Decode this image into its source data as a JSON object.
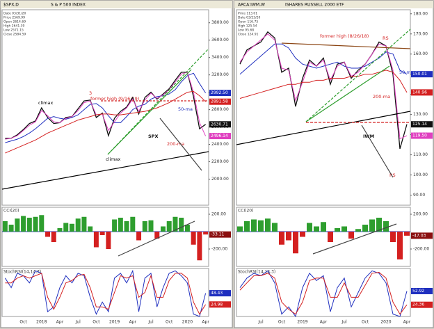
{
  "chart_data": [
    {
      "type": "line",
      "symbol": "$SPX,D",
      "title": "S & P 500 INDEX",
      "info": [
        "Date 03/31/20",
        "Price 2569.99",
        "Open 2614.69",
        "High 2641.39",
        "Low 2571.15",
        "Close 2584.59"
      ],
      "categories": [
        null,
        null,
        null,
        "Oct",
        null,
        null,
        "2018",
        null,
        null,
        "Apr",
        null,
        null,
        "Jul",
        null,
        null,
        "Oct",
        null,
        null,
        "2019",
        null,
        null,
        "Apr",
        null,
        null,
        "Jul",
        null,
        null,
        "Oct",
        null,
        null,
        "2020",
        null,
        null,
        "Apr"
      ],
      "ylim": [
        1700,
        3950
      ],
      "yticks": [
        {
          "value": 2000,
          "label": "2000.00"
        },
        {
          "value": 2200,
          "label": "2200.00"
        },
        {
          "value": 2400,
          "label": "2400.00"
        },
        {
          "value": 2600,
          "label": "2600.00"
        },
        {
          "value": 2800,
          "label": "2800.00"
        },
        {
          "value": 3000,
          "label": "3000.00"
        },
        {
          "value": 3200,
          "label": "3200.00"
        },
        {
          "value": 3400,
          "label": "3400.00"
        },
        {
          "value": 3600,
          "label": "3600.00"
        },
        {
          "value": 3800,
          "label": "3800.00"
        }
      ],
      "series": [
        {
          "name": "SPX",
          "color": "#111111",
          "values": [
            2470,
            2470,
            2510,
            2570,
            2640,
            2670,
            2820,
            2710,
            2640,
            2650,
            2710,
            2720,
            2810,
            2900,
            2910,
            2710,
            2760,
            2500,
            2700,
            2780,
            2830,
            2940,
            2750,
            2940,
            3000,
            2920,
            2980,
            3040,
            3140,
            3230,
            3230,
            2950,
            2580,
            2630.71
          ],
          "tag": {
            "value": 2630.71,
            "label": "2630.71"
          }
        },
        {
          "name": "50-ma",
          "color": "#1f2fbf",
          "values": [
            2420,
            2440,
            2460,
            2490,
            2530,
            2580,
            2640,
            2700,
            2720,
            2700,
            2690,
            2710,
            2740,
            2800,
            2860,
            2870,
            2820,
            2730,
            2650,
            2650,
            2720,
            2800,
            2840,
            2860,
            2920,
            2950,
            2960,
            2980,
            3030,
            3120,
            3190,
            3220,
            3100,
            2992.5
          ],
          "tag": {
            "value": 2992.5,
            "label": "2992.50"
          }
        },
        {
          "color": "#e040c0",
          "values": [
            2460,
            2470,
            2500,
            2560,
            2620,
            2660,
            2790,
            2730,
            2660,
            2650,
            2700,
            2720,
            2790,
            2880,
            2900,
            2740,
            2750,
            2560,
            2660,
            2760,
            2820,
            2920,
            2780,
            2910,
            2990,
            2930,
            2970,
            3030,
            3120,
            3210,
            3230,
            3000,
            2650,
            2496.14
          ],
          "tag": {
            "value": 2496.14,
            "label": "2496.14"
          }
        },
        {
          "name": "200-ma",
          "color": "#d42020",
          "values": [
            2300,
            2330,
            2360,
            2390,
            2420,
            2450,
            2490,
            2530,
            2560,
            2590,
            2620,
            2650,
            2680,
            2700,
            2720,
            2740,
            2750,
            2750,
            2740,
            2740,
            2750,
            2760,
            2770,
            2780,
            2800,
            2820,
            2850,
            2880,
            2920,
            2960,
            3000,
            3010,
            2960,
            2891.58
          ],
          "tag": {
            "value": 2891.58,
            "label": "2891.58"
          }
        }
      ],
      "annotations": [
        "climax",
        "3",
        "former high (9/16/19)",
        "climax"
      ]
    },
    {
      "type": "bar",
      "title": "CCI(20)",
      "pos_color": "#2e9e2e",
      "neg_color": "#d42020",
      "ylim": [
        -400,
        280
      ],
      "yticks": [
        {
          "value": 200,
          "label": "200.00"
        },
        {
          "value": -200,
          "label": "-200.00"
        }
      ],
      "values": [
        120,
        80,
        150,
        180,
        160,
        170,
        190,
        -60,
        -120,
        40,
        100,
        90,
        150,
        170,
        60,
        -180,
        -40,
        -200,
        140,
        160,
        120,
        170,
        -100,
        120,
        130,
        -80,
        60,
        120,
        170,
        160,
        80,
        -150,
        -330,
        -33.11
      ],
      "tag": {
        "value": -33.11,
        "label": "-33.11",
        "color": "#8b1010"
      }
    },
    {
      "type": "line",
      "title": "StochRSI(14,14,3)",
      "ylim": [
        0,
        100
      ],
      "series": [
        {
          "color": "#1f2fbf",
          "values": [
            80,
            60,
            90,
            85,
            70,
            95,
            90,
            10,
            20,
            60,
            85,
            70,
            90,
            85,
            40,
            5,
            30,
            10,
            80,
            90,
            70,
            95,
            10,
            80,
            90,
            20,
            60,
            90,
            95,
            85,
            70,
            5,
            0,
            48.43
          ],
          "tag": {
            "value": 48.43,
            "label": "48.43"
          }
        },
        {
          "color": "#d42020",
          "values": [
            70,
            70,
            80,
            85,
            80,
            85,
            90,
            40,
            15,
            40,
            70,
            75,
            85,
            88,
            60,
            20,
            20,
            15,
            50,
            85,
            80,
            85,
            40,
            50,
            85,
            40,
            40,
            75,
            90,
            90,
            80,
            30,
            5,
            24.98
          ],
          "tag": {
            "value": 24.98,
            "label": "24.98"
          }
        }
      ]
    },
    {
      "type": "line",
      "symbol": "ARCA:IWM,W",
      "title": "ISHARES RUSSELL 2000 ETF",
      "info": [
        "Price 113.01",
        "Date 03/23/20",
        "Open 116.75",
        "High 125.54",
        "Low 95.68",
        "Close 124.91"
      ],
      "categories": [
        null,
        null,
        null,
        "Jul",
        null,
        null,
        "Oct",
        null,
        null,
        "2019",
        null,
        null,
        "Apr",
        null,
        null,
        "Jul",
        null,
        null,
        "Oct",
        null,
        null,
        "2020",
        null,
        null,
        "Apr"
      ],
      "ylim": [
        85,
        182
      ],
      "yticks": [
        {
          "value": 90,
          "label": "90.00"
        },
        {
          "value": 100,
          "label": "100.00"
        },
        {
          "value": 110,
          "label": "110.00"
        },
        {
          "value": 120,
          "label": "120.00"
        },
        {
          "value": 130,
          "label": "130.00"
        },
        {
          "value": 140,
          "label": "140.00"
        },
        {
          "value": 150,
          "label": "150.00"
        },
        {
          "value": 160,
          "label": "160.00"
        },
        {
          "value": 170,
          "label": "170.00"
        },
        {
          "value": 180,
          "label": "180.00"
        }
      ],
      "series": [
        {
          "name": "IWM",
          "color": "#111111",
          "values": [
            155,
            162,
            164,
            166,
            171,
            168,
            151,
            153,
            134,
            148,
            157,
            154,
            158,
            145,
            155,
            156,
            148,
            152,
            155,
            160,
            166,
            164,
            150,
            113,
            125.14
          ],
          "tag": {
            "value": 125.14,
            "label": "125.14"
          }
        },
        {
          "name": "50-ma",
          "color": "#1f2fbf",
          "values": [
            150,
            153,
            156,
            159,
            162,
            165,
            165,
            163,
            158,
            155,
            154,
            153,
            154,
            155,
            156,
            154,
            153,
            153,
            154,
            156,
            158,
            161,
            160,
            152,
            150.01
          ],
          "tag": {
            "value": 150.01,
            "label": "150.01"
          }
        },
        {
          "color": "#e040c0",
          "values": [
            156,
            161,
            164,
            167,
            170,
            167,
            153,
            152,
            137,
            146,
            156,
            154,
            157,
            147,
            154,
            156,
            149,
            151,
            155,
            160,
            165,
            164,
            152,
            118,
            119.5
          ],
          "tag": {
            "value": 119.5,
            "label": "119.50"
          }
        },
        {
          "name": "200-ma",
          "color": "#d42020",
          "values": [
            138,
            139,
            140,
            141,
            142,
            143,
            144,
            145,
            145,
            146,
            146,
            147,
            147,
            148,
            148,
            148,
            149,
            149,
            150,
            150,
            151,
            152,
            151,
            147,
            140.96
          ],
          "tag": {
            "value": 140.96,
            "label": "140.96"
          }
        }
      ],
      "annotations": [
        "former high (8/26/18)",
        "RS",
        "RS"
      ]
    },
    {
      "type": "bar",
      "title": "CCI(20)",
      "pos_color": "#2e9e2e",
      "neg_color": "#d42020",
      "ylim": [
        -400,
        280
      ],
      "yticks": [
        {
          "value": 200,
          "label": "200.00"
        },
        {
          "value": -200,
          "label": "-200.00"
        }
      ],
      "values": [
        60,
        120,
        140,
        130,
        150,
        100,
        -150,
        -100,
        -250,
        -60,
        100,
        60,
        110,
        -120,
        40,
        60,
        -80,
        30,
        80,
        140,
        160,
        120,
        -120,
        -320,
        -47.03
      ],
      "tag": {
        "value": -47.03,
        "label": "-47.03",
        "color": "#8b1010"
      }
    },
    {
      "type": "line",
      "title": "StochRSI(14,14,3)",
      "ylim": [
        0,
        100
      ],
      "series": [
        {
          "color": "#1f2fbf",
          "values": [
            60,
            80,
            90,
            85,
            95,
            70,
            5,
            20,
            0,
            60,
            90,
            75,
            85,
            10,
            60,
            80,
            20,
            50,
            80,
            95,
            90,
            70,
            5,
            0,
            52.92
          ],
          "tag": {
            "value": 52.92,
            "label": "52.92"
          }
        },
        {
          "color": "#d42020",
          "values": [
            55,
            70,
            85,
            85,
            90,
            80,
            30,
            15,
            5,
            30,
            75,
            80,
            80,
            40,
            40,
            70,
            40,
            40,
            65,
            90,
            92,
            80,
            30,
            5,
            24.36
          ],
          "tag": {
            "value": 24.36,
            "label": "24.36"
          }
        }
      ]
    }
  ]
}
